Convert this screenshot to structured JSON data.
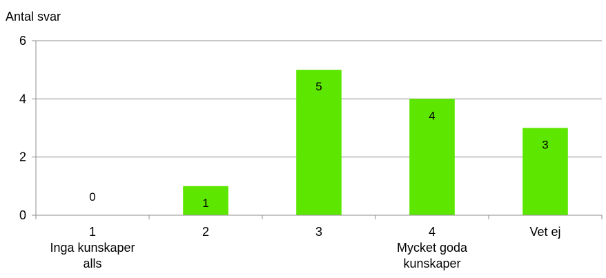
{
  "chart_data": {
    "type": "bar",
    "title": "",
    "xlabel": "",
    "ylabel": "Antal svar",
    "categories": [
      [
        "1",
        "Inga kunskaper",
        "alls"
      ],
      [
        "2"
      ],
      [
        "3"
      ],
      [
        "4",
        "Mycket goda",
        "kunskaper"
      ],
      [
        "Vet ej"
      ]
    ],
    "values": [
      0,
      1,
      5,
      4,
      3
    ],
    "data_labels": [
      "0",
      "1",
      "5",
      "4",
      "3"
    ],
    "ylim": [
      0,
      6
    ],
    "yticks": [
      "0",
      "2",
      "4",
      "6"
    ],
    "ytick_values": [
      0,
      2,
      4,
      6
    ],
    "grid": true,
    "legend": "none",
    "bar_color": "#5ce600",
    "grid_color": "#8c8c8c",
    "axis_color": "#8c8c8c"
  }
}
